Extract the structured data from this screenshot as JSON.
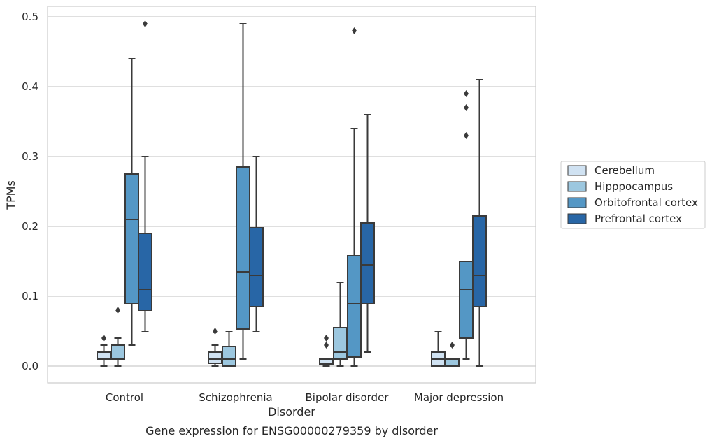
{
  "chart_data": {
    "type": "box",
    "caption": "Gene expression for ENSG00000279359 by disorder",
    "xlabel": "Disorder",
    "ylabel": "TPMs",
    "ylim": [
      -0.023,
      0.515
    ],
    "yticks": [
      0.0,
      0.1,
      0.2,
      0.3,
      0.4,
      0.5
    ],
    "ytick_labels": [
      "0.0",
      "0.1",
      "0.2",
      "0.3",
      "0.4",
      "0.5"
    ],
    "grid": "horizontal",
    "legend_placement": "right",
    "categories": [
      "Control",
      "Schizophrenia",
      "Bipolar disorder",
      "Major depression"
    ],
    "series": [
      {
        "name": "Cerebellum",
        "color": "#d0e2f2",
        "boxes": [
          {
            "whisker_low": 0.0,
            "q1": 0.01,
            "median": 0.01,
            "q3": 0.02,
            "whisker_high": 0.03,
            "outliers": [
              0.04
            ]
          },
          {
            "whisker_low": 0.0,
            "q1": 0.004,
            "median": 0.01,
            "q3": 0.02,
            "whisker_high": 0.03,
            "outliers": [
              0.05
            ]
          },
          {
            "whisker_low": 0.0,
            "q1": 0.003,
            "median": 0.01,
            "q3": 0.01,
            "whisker_high": 0.01,
            "outliers": [
              0.03,
              0.04
            ]
          },
          {
            "whisker_low": 0.0,
            "q1": 0.0,
            "median": 0.01,
            "q3": 0.02,
            "whisker_high": 0.05,
            "outliers": []
          }
        ]
      },
      {
        "name": "Hipppocampus",
        "color": "#9cc7df",
        "boxes": [
          {
            "whisker_low": 0.0,
            "q1": 0.01,
            "median": 0.01,
            "q3": 0.03,
            "whisker_high": 0.04,
            "outliers": [
              0.08
            ]
          },
          {
            "whisker_low": 0.0,
            "q1": 0.0,
            "median": 0.01,
            "q3": 0.028,
            "whisker_high": 0.05,
            "outliers": []
          },
          {
            "whisker_low": 0.0,
            "q1": 0.01,
            "median": 0.02,
            "q3": 0.055,
            "whisker_high": 0.12,
            "outliers": []
          },
          {
            "whisker_low": 0.0,
            "q1": 0.0,
            "median": 0.01,
            "q3": 0.01,
            "whisker_high": 0.01,
            "outliers": [
              0.03
            ]
          }
        ]
      },
      {
        "name": "Orbitofrontal cortex",
        "color": "#5497c5",
        "boxes": [
          {
            "whisker_low": 0.03,
            "q1": 0.09,
            "median": 0.21,
            "q3": 0.275,
            "whisker_high": 0.44,
            "outliers": []
          },
          {
            "whisker_low": 0.01,
            "q1": 0.053,
            "median": 0.135,
            "q3": 0.285,
            "whisker_high": 0.49,
            "outliers": []
          },
          {
            "whisker_low": 0.0,
            "q1": 0.013,
            "median": 0.09,
            "q3": 0.158,
            "whisker_high": 0.34,
            "outliers": [
              0.48
            ]
          },
          {
            "whisker_low": 0.01,
            "q1": 0.04,
            "median": 0.11,
            "q3": 0.15,
            "whisker_high": 0.15,
            "outliers": [
              0.33,
              0.37,
              0.39
            ]
          }
        ]
      },
      {
        "name": "Prefrontal cortex",
        "color": "#2866a6",
        "boxes": [
          {
            "whisker_low": 0.05,
            "q1": 0.08,
            "median": 0.11,
            "q3": 0.19,
            "whisker_high": 0.3,
            "outliers": [
              0.49
            ]
          },
          {
            "whisker_low": 0.05,
            "q1": 0.085,
            "median": 0.13,
            "q3": 0.198,
            "whisker_high": 0.3,
            "outliers": []
          },
          {
            "whisker_low": 0.02,
            "q1": 0.09,
            "median": 0.145,
            "q3": 0.205,
            "whisker_high": 0.36,
            "outliers": []
          },
          {
            "whisker_low": 0.0,
            "q1": 0.085,
            "median": 0.13,
            "q3": 0.215,
            "whisker_high": 0.41,
            "outliers": []
          }
        ]
      }
    ]
  }
}
